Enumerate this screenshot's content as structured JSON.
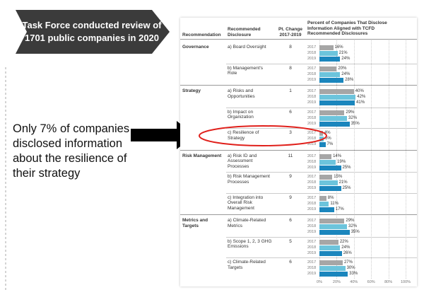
{
  "callout": "Task Force conducted review of 1701 public companies in 2020",
  "annotation": "Only 7% of companies disclosed information about the resilience of their strategy",
  "table": {
    "headers": {
      "recommendation": "Recommendation",
      "disclosure": "Recommended Disclosure",
      "change": "Pt. Change 2017-2019",
      "percent": "Percent of Companies That Disclose Information Aligned with TCFD Recommended Disclosures"
    },
    "years": [
      "2017",
      "2018",
      "2019"
    ],
    "colors": [
      "#a6a6a6",
      "#6cc4dc",
      "#1b86bd"
    ],
    "xlim": [
      0,
      100
    ],
    "xticks": [
      {
        "value": 0,
        "label": "0%"
      },
      {
        "value": 20,
        "label": "20%"
      },
      {
        "value": 40,
        "label": "40%"
      },
      {
        "value": 60,
        "label": "60%"
      },
      {
        "value": 80,
        "label": "80%"
      },
      {
        "value": 100,
        "label": "100%"
      }
    ],
    "groups": [
      {
        "name": "Governance",
        "rows": [
          {
            "disclosure": "a) Board Oversight",
            "change": "8",
            "values": [
              16,
              21,
              24
            ],
            "value_labels": [
              "16%",
              "21%",
              "24%"
            ]
          },
          {
            "disclosure": "b) Management's Role",
            "change": "8",
            "values": [
              20,
              24,
              28
            ],
            "value_labels": [
              "20%",
              "24%",
              "28%"
            ]
          }
        ]
      },
      {
        "name": "Strategy",
        "rows": [
          {
            "disclosure": "a) Risks and Opportunities",
            "change": "1",
            "values": [
              40,
              42,
              41
            ],
            "value_labels": [
              "40%",
              "42%",
              "41%"
            ]
          },
          {
            "disclosure": "b) Impact on Organization",
            "change": "6",
            "values": [
              29,
              32,
              35
            ],
            "value_labels": [
              "29%",
              "32%",
              "35%"
            ]
          },
          {
            "disclosure": "c) Resilience of Strategy",
            "change": "3",
            "values": [
              4,
              5,
              7
            ],
            "value_labels": [
              "4%",
              "5%",
              "7%"
            ]
          }
        ]
      },
      {
        "name": "Risk Management",
        "rows": [
          {
            "disclosure": "a) Risk ID and Assessment Processes",
            "change": "11",
            "values": [
              14,
              19,
              25
            ],
            "value_labels": [
              "14%",
              "19%",
              "25%"
            ]
          },
          {
            "disclosure": "b) Risk Management Processes",
            "change": "9",
            "values": [
              15,
              21,
              25
            ],
            "value_labels": [
              "15%",
              "21%",
              "25%"
            ]
          },
          {
            "disclosure": "c) Integration into Overall Risk Management",
            "change": "9",
            "values": [
              8,
              11,
              17
            ],
            "value_labels": [
              "8%",
              "11%",
              "17%"
            ]
          }
        ]
      },
      {
        "name": "Metrics and Targets",
        "rows": [
          {
            "disclosure": "a) Climate-Related Metrics",
            "change": "6",
            "values": [
              29,
              32,
              35
            ],
            "value_labels": [
              "29%",
              "32%",
              "35%"
            ]
          },
          {
            "disclosure": "b) Scope 1, 2, 3 GHG Emissions",
            "change": "5",
            "values": [
              22,
              24,
              26
            ],
            "value_labels": [
              "22%",
              "24%",
              "26%"
            ]
          },
          {
            "disclosure": "c) Climate-Related Targets",
            "change": "6",
            "values": [
              27,
              30,
              33
            ],
            "value_labels": [
              "27%",
              "30%",
              "33%"
            ]
          }
        ]
      }
    ]
  }
}
